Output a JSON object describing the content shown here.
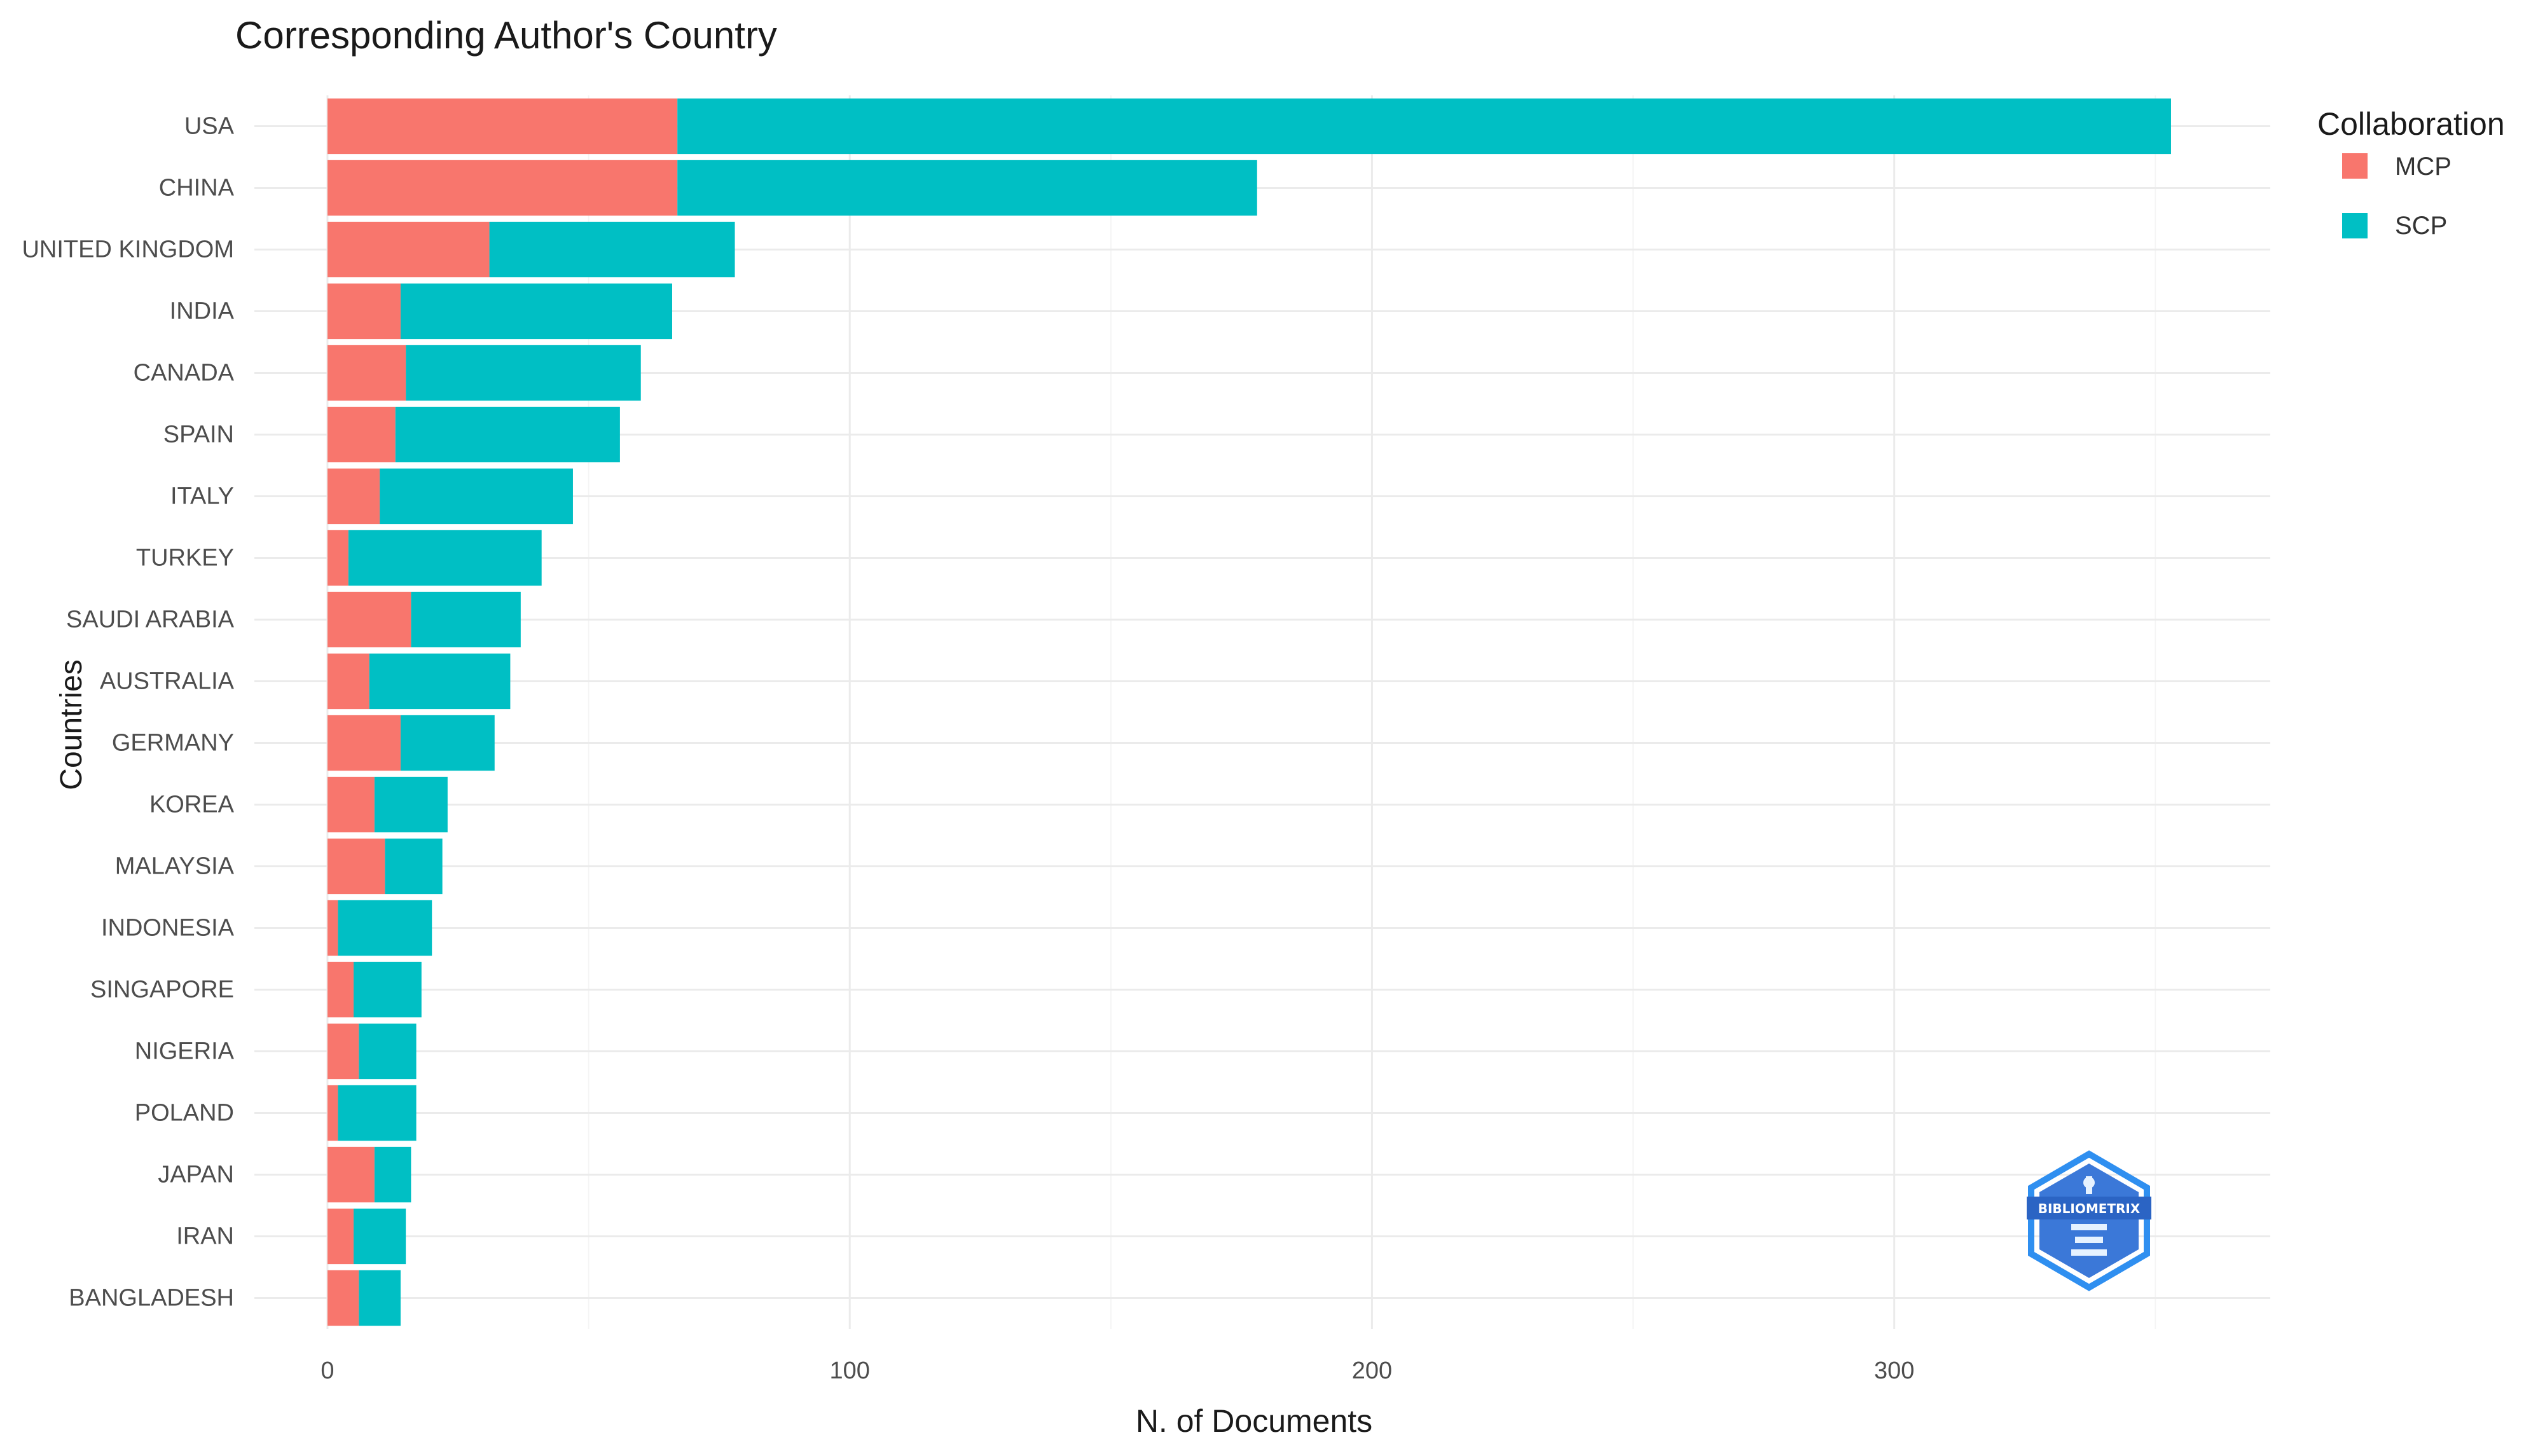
{
  "chart_data": {
    "type": "bar",
    "orientation": "horizontal",
    "stacked": true,
    "title": "Corresponding Author's Country",
    "xlabel": "N. of Documents",
    "ylabel": "Countries",
    "xlim": [
      -14,
      372
    ],
    "x_ticks": [
      0,
      100,
      200,
      300
    ],
    "x_tick_labels": [
      "0",
      "100",
      "200",
      "300"
    ],
    "grid": true,
    "legend": {
      "title": "Collaboration",
      "position": "right-top"
    },
    "categories": [
      "USA",
      "CHINA",
      "UNITED KINGDOM",
      "INDIA",
      "CANADA",
      "SPAIN",
      "ITALY",
      "TURKEY",
      "SAUDI ARABIA",
      "AUSTRALIA",
      "GERMANY",
      "KOREA",
      "MALAYSIA",
      "INDONESIA",
      "SINGAPORE",
      "NIGERIA",
      "POLAND",
      "JAPAN",
      "IRAN",
      "BANGLADESH"
    ],
    "series": [
      {
        "name": "MCP",
        "color": "#f8766d",
        "values": [
          67,
          67,
          31,
          14,
          15,
          13,
          10,
          4,
          16,
          8,
          14,
          9,
          11,
          2,
          5,
          6,
          2,
          9,
          5,
          6
        ]
      },
      {
        "name": "SCP",
        "color": "#00bfc4",
        "values": [
          286,
          111,
          47,
          52,
          45,
          43,
          37,
          37,
          21,
          27,
          18,
          14,
          11,
          18,
          13,
          11,
          15,
          7,
          10,
          8
        ]
      }
    ]
  },
  "logo": {
    "icon": "bibliometrix-logo-icon",
    "text": "BIBLIOMETRIX"
  }
}
